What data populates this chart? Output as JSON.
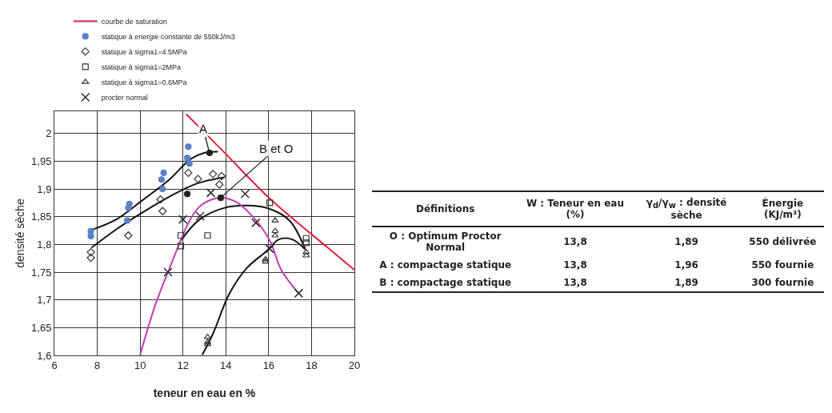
{
  "chart_data": [
    {
      "type": "scatter",
      "xlabel": "teneur en eau en %",
      "ylabel": "densité sèche",
      "xlim": [
        6,
        20
      ],
      "ylim": [
        1.6,
        2.04
      ],
      "xticks": [
        6,
        8,
        10,
        12,
        14,
        16,
        18,
        20
      ],
      "yticks": [
        {
          "value": 1.6,
          "label": "1,6"
        },
        {
          "value": 1.65,
          "label": "1,65"
        },
        {
          "value": 1.7,
          "label": "1,7"
        },
        {
          "value": 1.75,
          "label": "1,75"
        },
        {
          "value": 1.8,
          "label": "1,8"
        },
        {
          "value": 1.85,
          "label": "1,85"
        },
        {
          "value": 1.9,
          "label": "1,9"
        },
        {
          "value": 1.95,
          "label": "1,95"
        },
        {
          "value": 2,
          "label": "2"
        }
      ],
      "grid": true,
      "legend": "top left",
      "series": [
        {
          "name": "courbe de saturation",
          "type": "line",
          "marker": "none",
          "color": "#e0203c",
          "x": [
            12.15,
            13.9,
            16.04,
            18.76,
            20
          ],
          "values": [
            2.035,
            1.967,
            1.883,
            1.794,
            1.754
          ]
        },
        {
          "type": "line",
          "marker": "none",
          "color": "#111111",
          "x": [
            7.73,
            8.89,
            10.09,
            11.37,
            12.36,
            13.0,
            13.63
          ],
          "values": [
            1.826,
            1.845,
            1.879,
            1.917,
            1.954,
            1.965,
            1.967
          ]
        },
        {
          "type": "line",
          "marker": "none",
          "color": "#111111",
          "x": [
            7.73,
            8.92,
            10.13,
            11.41,
            12.67,
            13.95
          ],
          "values": [
            1.794,
            1.828,
            1.858,
            1.887,
            1.91,
            1.921
          ]
        },
        {
          "type": "line",
          "marker": "none",
          "color": "#111111",
          "x": [
            11.9,
            12.78,
            13.95,
            15.07,
            16.05,
            16.97,
            17.7
          ],
          "values": [
            1.807,
            1.845,
            1.866,
            1.87,
            1.864,
            1.843,
            1.792
          ]
        },
        {
          "type": "line",
          "marker": "none",
          "color": "#111111",
          "x": [
            12.9,
            13.4,
            14.15,
            14.97,
            15.9,
            16.48,
            17.1,
            17.7
          ],
          "values": [
            1.601,
            1.639,
            1.71,
            1.757,
            1.788,
            1.809,
            1.809,
            1.791
          ]
        },
        {
          "type": "line",
          "marker": "none",
          "color": "#c03cb4",
          "x": [
            10.0,
            10.7,
            11.3,
            12.72,
            13.72,
            14.5,
            15.37,
            16.05,
            16.6,
            17.4
          ],
          "values": [
            1.601,
            1.69,
            1.75,
            1.866,
            1.884,
            1.876,
            1.845,
            1.807,
            1.753,
            1.712
          ]
        },
        {
          "name": "statique à energie constante de 550kJ/m3",
          "type": "scatter",
          "marker": "circle",
          "color": "#5a80c8",
          "x": [
            7.7,
            7.7,
            9.4,
            9.45,
            9.5,
            11.05,
            11.0,
            11.1,
            12.25,
            12.2,
            12.3
          ],
          "values": [
            1.824,
            1.815,
            1.843,
            1.866,
            1.873,
            1.9,
            1.917,
            1.929,
            1.976,
            1.956,
            1.946
          ]
        },
        {
          "name": "statique à sigma1=4.5MPa",
          "type": "scatter",
          "marker": "diamond",
          "color": "#333333",
          "x": [
            7.7,
            7.7,
            9.45,
            11.05,
            10.95,
            12.25,
            12.7,
            13.4,
            13.8,
            13.7
          ],
          "values": [
            1.786,
            1.776,
            1.816,
            1.86,
            1.881,
            1.929,
            1.918,
            1.927,
            1.923,
            1.908
          ]
        },
        {
          "name": "statique à sigma1=2MPa",
          "type": "scatter",
          "marker": "square",
          "color": "#333333",
          "x": [
            11.9,
            11.9,
            13.15,
            16.05,
            17.75,
            17.75
          ],
          "values": [
            1.816,
            1.797,
            1.816,
            1.875,
            1.811,
            1.803
          ]
        },
        {
          "name": "statique à sigma1=0.6MPa",
          "type": "scatter",
          "marker": "triangle",
          "color": "#333333",
          "x": [
            16.3,
            16.3,
            16.3,
            17.75,
            17.75,
            15.85,
            15.85,
            13.15,
            13.15,
            13.15
          ],
          "values": [
            1.843,
            1.824,
            1.816,
            1.786,
            1.78,
            1.773,
            1.769,
            1.633,
            1.624,
            1.62
          ]
        },
        {
          "name": "procter normal",
          "type": "scatter",
          "marker": "cross",
          "color": "#333333",
          "x": [
            11.3,
            12.0,
            12.8,
            13.3,
            14.9,
            15.4,
            16.05,
            17.4
          ],
          "values": [
            1.75,
            1.845,
            1.851,
            1.893,
            1.891,
            1.839,
            1.792,
            1.712
          ]
        },
        {
          "type": "scatter",
          "marker": "circle",
          "color": "#222222",
          "x": [
            13.24,
            13.76,
            12.2
          ],
          "values": [
            1.965,
            1.884,
            1.891
          ]
        }
      ],
      "annotations": [
        {
          "text": "A",
          "x": 13.24,
          "y": 1.965
        },
        {
          "text": "B et O",
          "x": 13.76,
          "y": 1.884
        }
      ]
    },
    {
      "type": "other",
      "categories": [
        "Définitions",
        "W : Teneur en eau (%)",
        "γ$_{d}$/γ$_{w}$ : densité sèche",
        "Énergie (KJ/m³)"
      ],
      "cell_labels": [
        [
          "O : Optimum Proctor Normal",
          "13,8",
          "1,89",
          "550 délivrée"
        ],
        [
          "A : compactage statique",
          "13,8",
          "1,96",
          "550 fournie"
        ],
        [
          "B : compactage statique",
          "13,8",
          "1,89",
          "300 fournie"
        ]
      ]
    }
  ]
}
